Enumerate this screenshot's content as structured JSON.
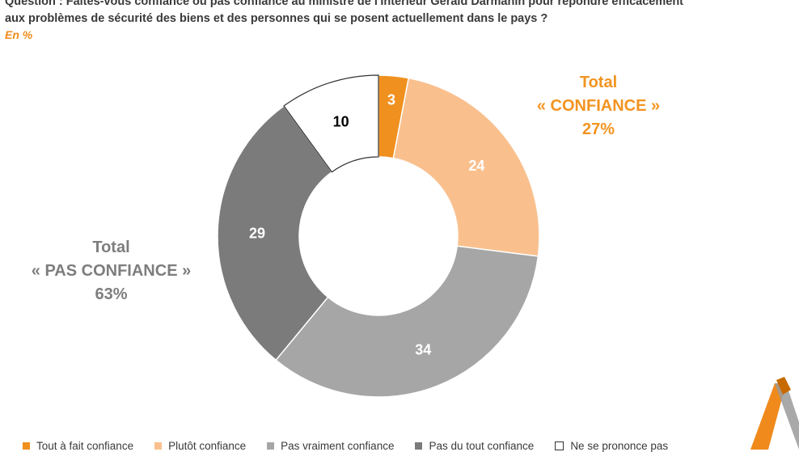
{
  "question": {
    "line1": "Question : Faites-vous confiance ou pas confiance au ministre de l'Intérieur Gérald Darmanin pour répondre efficacement",
    "line2": "aux problèmes de sécurité des biens et des personnes qui se posent actuellement dans le pays ?",
    "unit": "En %"
  },
  "totals": {
    "confiance": {
      "line1": "Total",
      "line2": "« CONFIANCE »",
      "line3": "27%"
    },
    "pas_confiance": {
      "line1": "Total",
      "line2": "« PAS CONFIANCE »",
      "line3": "63%"
    }
  },
  "chart_data": {
    "type": "pie",
    "donut": true,
    "categories": [
      "Tout à fait confiance",
      "Plutôt confiance",
      "Pas vraiment confiance",
      "Pas du tout confiance",
      "Ne se prononce pas"
    ],
    "values": [
      3,
      24,
      34,
      29,
      10
    ],
    "colors": [
      "#f0901e",
      "#f9c08e",
      "#a6a6a6",
      "#7b7b7b",
      "#ffffff"
    ],
    "label_colors": [
      "#ffffff",
      "#ffffff",
      "#ffffff",
      "#ffffff",
      "#000000"
    ],
    "legend_position": "bottom"
  },
  "legend": [
    {
      "label": "Tout à fait confiance",
      "color": "#f0901e"
    },
    {
      "label": "Plutôt confiance",
      "color": "#f9c08e"
    },
    {
      "label": "Pas vraiment confiance",
      "color": "#a6a6a6"
    },
    {
      "label": "Pas du tout confiance",
      "color": "#7b7b7b"
    },
    {
      "label": "Ne se prononce pas",
      "color": "#ffffff"
    }
  ]
}
